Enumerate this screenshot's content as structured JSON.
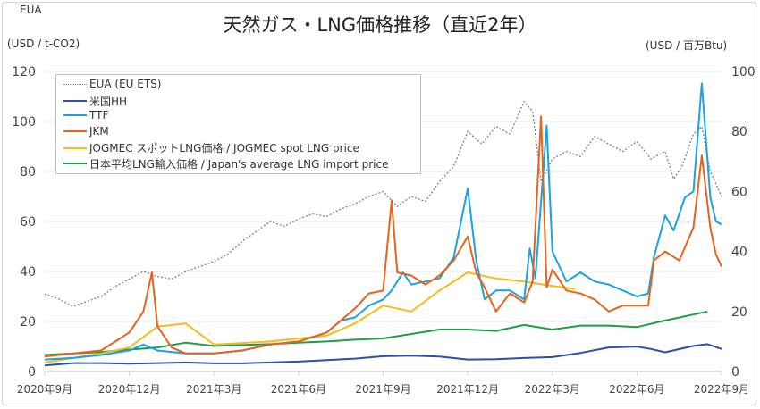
{
  "chart_data": {
    "type": "line",
    "title": "天然ガス・LNG価格推移（直近2年）",
    "ylabel_left": [
      "EUA",
      "(USD / t-CO2)"
    ],
    "ylabel_right": "(USD / 百万Btu)",
    "ylim_left": [
      0,
      120
    ],
    "ylim_right": [
      0,
      100
    ],
    "yticks_left": [
      "0",
      "20",
      "40",
      "60",
      "80",
      "100",
      "120"
    ],
    "yticks_right": [
      "0",
      "20",
      "40",
      "60",
      "80",
      "100"
    ],
    "x_unit": "months since 2020年9月",
    "xlim": [
      0,
      24
    ],
    "xticks": [
      {
        "x": 0,
        "label": "2020年9月"
      },
      {
        "x": 3,
        "label": "2020年12月"
      },
      {
        "x": 6,
        "label": "2021年3月"
      },
      {
        "x": 9,
        "label": "2021年6月"
      },
      {
        "x": 12,
        "label": "2021年9月"
      },
      {
        "x": 15,
        "label": "2021年12月"
      },
      {
        "x": 18,
        "label": "2022年3月"
      },
      {
        "x": 21,
        "label": "2022年6月"
      },
      {
        "x": 24,
        "label": "2022年9月"
      }
    ],
    "grid": true,
    "legend_position": "top-left",
    "series": [
      {
        "name": "EUA (EU ETS)",
        "axis": "left",
        "color": "#7f7f7f",
        "dash": true,
        "points": [
          [
            0,
            31
          ],
          [
            0.5,
            29
          ],
          [
            1,
            26
          ],
          [
            1.5,
            28
          ],
          [
            2,
            30
          ],
          [
            2.5,
            34
          ],
          [
            3,
            37
          ],
          [
            3.5,
            40
          ],
          [
            4,
            38
          ],
          [
            4.5,
            37
          ],
          [
            5,
            40
          ],
          [
            5.5,
            42
          ],
          [
            6,
            44
          ],
          [
            6.5,
            47
          ],
          [
            7,
            52
          ],
          [
            7.5,
            56
          ],
          [
            8,
            60
          ],
          [
            8.5,
            58
          ],
          [
            9,
            61
          ],
          [
            9.5,
            63
          ],
          [
            10,
            62
          ],
          [
            10.5,
            65
          ],
          [
            11,
            67
          ],
          [
            11.5,
            70
          ],
          [
            12,
            72
          ],
          [
            12.5,
            66
          ],
          [
            13,
            70
          ],
          [
            13.5,
            68
          ],
          [
            14,
            76
          ],
          [
            14.5,
            82
          ],
          [
            15,
            96
          ],
          [
            15.5,
            91
          ],
          [
            16,
            98
          ],
          [
            16.5,
            95
          ],
          [
            17,
            108
          ],
          [
            17.3,
            104
          ],
          [
            17.6,
            76
          ],
          [
            18,
            85
          ],
          [
            18.5,
            88
          ],
          [
            19,
            86
          ],
          [
            19.5,
            94
          ],
          [
            20,
            91
          ],
          [
            20.5,
            88
          ],
          [
            21,
            92
          ],
          [
            21.5,
            85
          ],
          [
            22,
            88
          ],
          [
            22.3,
            77
          ],
          [
            22.6,
            82
          ],
          [
            23,
            95
          ],
          [
            23.3,
            98
          ],
          [
            23.6,
            80
          ],
          [
            24,
            70
          ]
        ]
      },
      {
        "name": "米国HH",
        "axis": "right",
        "color": "#2f4fa3",
        "dash": false,
        "points": [
          [
            0,
            2
          ],
          [
            1,
            2.8
          ],
          [
            2,
            2.8
          ],
          [
            3,
            2.6
          ],
          [
            4,
            2.8
          ],
          [
            5,
            3
          ],
          [
            6,
            2.7
          ],
          [
            7,
            2.7
          ],
          [
            8,
            3
          ],
          [
            9,
            3.3
          ],
          [
            10,
            3.8
          ],
          [
            11,
            4.3
          ],
          [
            12,
            5.1
          ],
          [
            13,
            5.3
          ],
          [
            14,
            5
          ],
          [
            15,
            4
          ],
          [
            16,
            4.1
          ],
          [
            17,
            4.5
          ],
          [
            18,
            4.8
          ],
          [
            19,
            6.2
          ],
          [
            20,
            8
          ],
          [
            21,
            8.3
          ],
          [
            21.5,
            7.5
          ],
          [
            22,
            6.4
          ],
          [
            23,
            8.5
          ],
          [
            23.5,
            9.1
          ],
          [
            24,
            7.5
          ]
        ]
      },
      {
        "name": "TTF",
        "axis": "right",
        "color": "#1aa3e0",
        "dash": false,
        "points": [
          [
            0,
            4
          ],
          [
            1,
            4.5
          ],
          [
            2,
            5.5
          ],
          [
            3,
            7
          ],
          [
            3.5,
            9
          ],
          [
            4,
            7
          ],
          [
            5,
            6
          ],
          [
            6,
            6
          ],
          [
            7,
            7
          ],
          [
            8,
            9
          ],
          [
            9,
            10
          ],
          [
            10,
            13
          ],
          [
            10.5,
            17
          ],
          [
            11,
            18
          ],
          [
            11.5,
            22
          ],
          [
            12,
            24
          ],
          [
            12.3,
            27
          ],
          [
            12.7,
            33
          ],
          [
            13,
            29
          ],
          [
            13.5,
            30
          ],
          [
            14,
            31
          ],
          [
            14.5,
            38
          ],
          [
            15,
            61
          ],
          [
            15.3,
            37
          ],
          [
            15.6,
            24
          ],
          [
            16,
            27
          ],
          [
            16.5,
            27
          ],
          [
            17,
            24
          ],
          [
            17.2,
            41
          ],
          [
            17.4,
            31
          ],
          [
            17.8,
            82
          ],
          [
            18,
            40
          ],
          [
            18.5,
            30
          ],
          [
            19,
            33
          ],
          [
            19.5,
            30
          ],
          [
            20,
            29
          ],
          [
            20.5,
            27
          ],
          [
            21,
            25
          ],
          [
            21.4,
            26
          ],
          [
            21.6,
            38
          ],
          [
            22,
            52
          ],
          [
            22.3,
            47
          ],
          [
            22.7,
            58
          ],
          [
            23,
            60
          ],
          [
            23.3,
            96
          ],
          [
            23.6,
            58
          ],
          [
            23.8,
            50
          ],
          [
            24,
            49
          ]
        ]
      },
      {
        "name": "JKM",
        "axis": "right",
        "color": "#e8621c",
        "dash": false,
        "points": [
          [
            0,
            5
          ],
          [
            1,
            6
          ],
          [
            2,
            7
          ],
          [
            2.5,
            10
          ],
          [
            3,
            13
          ],
          [
            3.5,
            20
          ],
          [
            3.8,
            33
          ],
          [
            4,
            15
          ],
          [
            4.5,
            8
          ],
          [
            5,
            6
          ],
          [
            6,
            6
          ],
          [
            7,
            7
          ],
          [
            8,
            9
          ],
          [
            9,
            10
          ],
          [
            10,
            13
          ],
          [
            10.5,
            17
          ],
          [
            11,
            21
          ],
          [
            11.5,
            26
          ],
          [
            12,
            27
          ],
          [
            12.3,
            57
          ],
          [
            12.5,
            33
          ],
          [
            13,
            32
          ],
          [
            13.5,
            29
          ],
          [
            14,
            32
          ],
          [
            14.5,
            37
          ],
          [
            15,
            45
          ],
          [
            15.3,
            33
          ],
          [
            15.6,
            28
          ],
          [
            16,
            20
          ],
          [
            16.5,
            26
          ],
          [
            17,
            23
          ],
          [
            17.3,
            30
          ],
          [
            17.6,
            85
          ],
          [
            17.8,
            28
          ],
          [
            18,
            34
          ],
          [
            18.5,
            27
          ],
          [
            19,
            26
          ],
          [
            19.5,
            24
          ],
          [
            20,
            20
          ],
          [
            20.5,
            22
          ],
          [
            21,
            22
          ],
          [
            21.4,
            22
          ],
          [
            21.6,
            37
          ],
          [
            22,
            40
          ],
          [
            22.5,
            37
          ],
          [
            23,
            48
          ],
          [
            23.3,
            72
          ],
          [
            23.6,
            48
          ],
          [
            23.8,
            39
          ],
          [
            24,
            35
          ]
        ]
      },
      {
        "name": "JOGMEC スポットLNG価格 / JOGMEC spot LNG price",
        "axis": "right",
        "color": "#f4bb1a",
        "dash": false,
        "points": [
          [
            0,
            3
          ],
          [
            1,
            4.5
          ],
          [
            2,
            6
          ],
          [
            3,
            8
          ],
          [
            4,
            15
          ],
          [
            5,
            16
          ],
          [
            6,
            9
          ],
          [
            7,
            9.5
          ],
          [
            8,
            10
          ],
          [
            9,
            11
          ],
          [
            10,
            12
          ],
          [
            11,
            16
          ],
          [
            12,
            22
          ],
          [
            13,
            20
          ],
          [
            14,
            27
          ],
          [
            15,
            33
          ],
          [
            16,
            31
          ],
          [
            17,
            30
          ],
          [
            18,
            28.5
          ],
          [
            18.8,
            27.5
          ]
        ]
      },
      {
        "name": "日本平均LNG輸入価格 / Japan's average LNG import price",
        "axis": "right",
        "color": "#1f9d48",
        "dash": false,
        "points": [
          [
            0,
            5.5
          ],
          [
            1,
            6
          ],
          [
            2,
            6.5
          ],
          [
            3,
            7.3
          ],
          [
            4,
            8
          ],
          [
            5,
            9.6
          ],
          [
            6,
            8.5
          ],
          [
            7,
            8.8
          ],
          [
            8,
            9.1
          ],
          [
            9,
            9.6
          ],
          [
            10,
            10
          ],
          [
            11,
            10.6
          ],
          [
            12,
            11
          ],
          [
            13,
            12.5
          ],
          [
            14,
            14
          ],
          [
            15,
            14
          ],
          [
            16,
            13.5
          ],
          [
            17,
            15.5
          ],
          [
            18,
            14
          ],
          [
            19,
            15.3
          ],
          [
            20,
            15.3
          ],
          [
            21,
            14.8
          ],
          [
            22,
            17
          ],
          [
            23,
            19
          ],
          [
            23.5,
            20
          ]
        ]
      }
    ]
  }
}
